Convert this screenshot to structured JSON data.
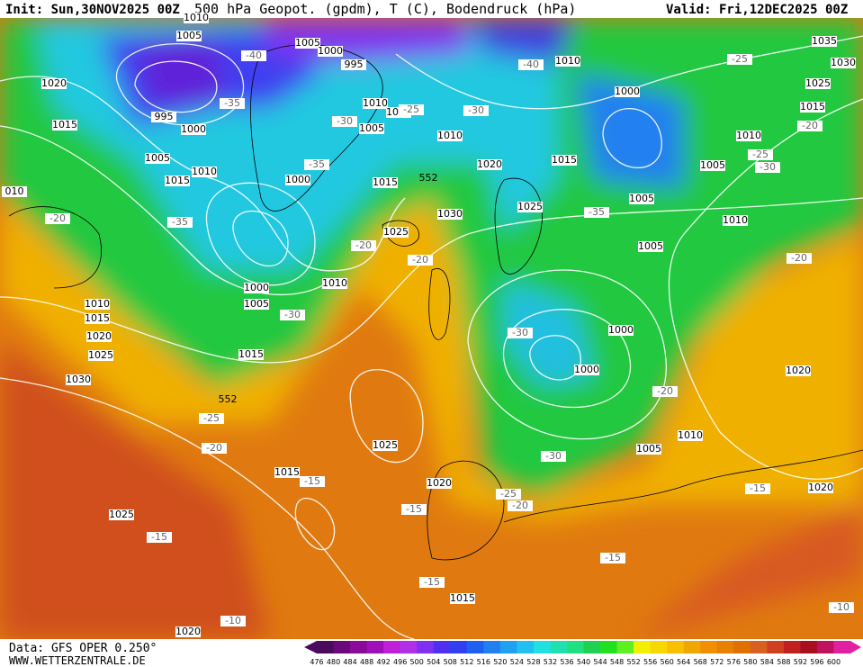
{
  "header": {
    "init": "Init: Sun,30NOV2025 00Z",
    "title": "500 hPa Geopot. (gpdm), T (C), Bodendruck (hPa)",
    "valid": "Valid: Fri,12DEC2025 00Z"
  },
  "footer": {
    "data": "Data: GFS OPER 0.250°",
    "site": "WWW.WETTERZENTRALE.DE"
  },
  "colorbar": {
    "labels": [
      "476",
      "480",
      "484",
      "488",
      "492",
      "496",
      "500",
      "504",
      "508",
      "512",
      "516",
      "520",
      "524",
      "528",
      "532",
      "536",
      "540",
      "544",
      "548",
      "552",
      "556",
      "560",
      "564",
      "568",
      "572",
      "576",
      "580",
      "584",
      "588",
      "592",
      "596",
      "600"
    ],
    "colors": [
      "#4b0a5e",
      "#6a0a7a",
      "#8a0a9a",
      "#a010b8",
      "#c020d8",
      "#b030e8",
      "#8030f0",
      "#5030f0",
      "#3040f0",
      "#2060f0",
      "#2080f0",
      "#20a0f0",
      "#20c0f0",
      "#20e0e0",
      "#20e0b0",
      "#20e080",
      "#20d050",
      "#20e020",
      "#60f020",
      "#f0f000",
      "#f8d800",
      "#f8c000",
      "#f0a800",
      "#f09000",
      "#e88000",
      "#e07000",
      "#d86020",
      "#d04020",
      "#c02020",
      "#a81020",
      "#c01060",
      "#e020a0"
    ]
  },
  "map": {
    "pressure_labels": [
      "1010",
      "1005",
      "1020",
      "995",
      "1000",
      "1015",
      "1005",
      "1010",
      "1015",
      "010",
      "1005",
      "1000",
      "995",
      "1010",
      "1010",
      "1005",
      "1010",
      "1000",
      "1015",
      "1020",
      "1015",
      "1010",
      "1000",
      "1035",
      "1030",
      "1025",
      "1015",
      "1010",
      "1005",
      "1005",
      "1010",
      "1030",
      "1025",
      "1025",
      "1005",
      "1000",
      "1005",
      "1010",
      "1010",
      "1015",
      "1020",
      "1025",
      "1030",
      "1015",
      "1000",
      "1000",
      "1020",
      "1025",
      "1010",
      "1005",
      "1015",
      "1020",
      "1020",
      "1025",
      "1015",
      "1020"
    ],
    "temperature_labels": [
      "-40",
      "-40",
      "-35",
      "-30",
      "-30",
      "-25",
      "-35",
      "-25",
      "-20",
      "-25",
      "-30",
      "-35",
      "-20",
      "-35",
      "-20",
      "-20",
      "-30",
      "-20",
      "-30",
      "-25",
      "-20",
      "-20",
      "-15",
      "-30",
      "-25",
      "-20",
      "-15",
      "-15",
      "-15",
      "-15",
      "-15",
      "-10",
      "-10"
    ],
    "height_labels": [
      "552",
      "552"
    ]
  }
}
